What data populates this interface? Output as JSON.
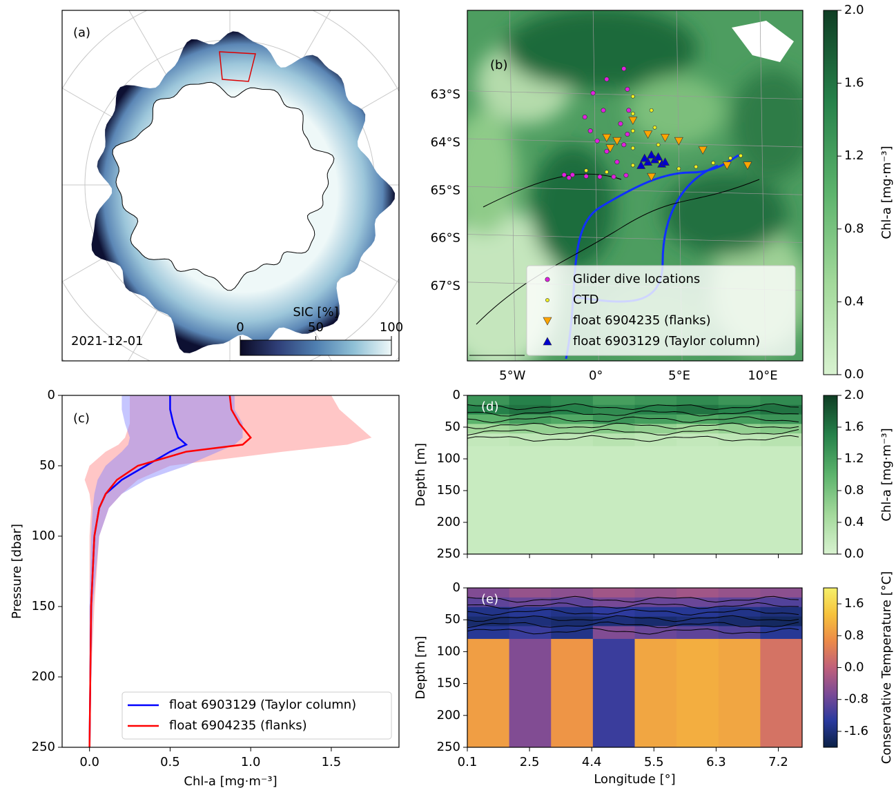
{
  "chart_data": [
    {
      "type": "map",
      "panel_label": "(a)",
      "annotation": "2021-12-01",
      "colorbar": {
        "label": "SIC [%]",
        "lim": [
          0,
          100
        ],
        "ticks": [
          0,
          50,
          100
        ],
        "colors": [
          "#0b0b25",
          "#2f3f78",
          "#4f7fb0",
          "#8fc0d6",
          "#eef8f8"
        ]
      }
    },
    {
      "type": "scatter",
      "panel_label": "(b)",
      "legend": "lower right",
      "xlim": [
        -7.7,
        12.4
      ],
      "ylim": [
        -68.56,
        -61.23
      ],
      "xticks": [
        {
          "value": -5,
          "label": "5°W"
        },
        {
          "value": 0,
          "label": "0°"
        },
        {
          "value": 5,
          "label": "5°E"
        },
        {
          "value": 10,
          "label": "10°E"
        }
      ],
      "yticks": [
        {
          "value": -63,
          "label": "63°S"
        },
        {
          "value": -64,
          "label": "64°S"
        },
        {
          "value": -65,
          "label": "65°S"
        },
        {
          "value": -66,
          "label": "66°S"
        },
        {
          "value": -67,
          "label": "67°S"
        }
      ],
      "series": [
        {
          "name": "Glider dive locations",
          "color": "#e020e0",
          "marker": "o",
          "x": [
            -0.66,
            -0.33,
            0.08,
            0.65,
            1.27,
            1.68,
            1.48,
            0.45,
            -0.17,
            0.65,
            1.68,
            1.89,
            1.97,
            1.89,
            1.81,
            1.07,
            0.24,
            -0.58,
            -1.4,
            -1.9,
            -1.61
          ],
          "values": [
            -63.46,
            -63.75,
            -63.96,
            -64.18,
            -64.4,
            -64.04,
            -63.6,
            -63.32,
            -62.96,
            -62.67,
            -62.45,
            -62.88,
            -63.32,
            -63.82,
            -64.68,
            -64.71,
            -64.71,
            -64.7,
            -64.67,
            -64.67,
            -64.73
          ]
        },
        {
          "name": "CTD",
          "color": "#f0f020",
          "marker": "o",
          "x": [
            2.22,
            2.22,
            2.22,
            2.22,
            2.22,
            3.33,
            3.53,
            3.74,
            3.86,
            4.97,
            6.0,
            7.03,
            8.06,
            8.68,
            0.65,
            -0.58
          ],
          "values": [
            -63.03,
            -63.39,
            -63.75,
            -64.11,
            -64.47,
            -63.32,
            -63.68,
            -64.04,
            -64.4,
            -64.54,
            -64.5,
            -64.42,
            -64.32,
            -64.27,
            -64.61,
            -64.58
          ]
        },
        {
          "name": "float 6904235 (flanks)",
          "color": "#ffa500",
          "marker": "v",
          "x": [
            2.22,
            0.65,
            0.86,
            1.27,
            3.12,
            4.15,
            4.97,
            6.41,
            7.86,
            9.09,
            3.33
          ],
          "values": [
            -63.53,
            -63.89,
            -64.11,
            -63.96,
            -63.82,
            -63.89,
            -63.96,
            -64.15,
            -64.47,
            -64.47,
            -64.71
          ]
        },
        {
          "name": "float 6903129 (Taylor column)",
          "color": "#0000cd",
          "marker": "^",
          "x": [
            2.71,
            3.12,
            3.53,
            3.95,
            2.92,
            3.33,
            3.74,
            4.15
          ],
          "values": [
            -64.47,
            -64.4,
            -64.35,
            -64.44,
            -64.32,
            -64.25,
            -64.29,
            -64.4
          ]
        }
      ],
      "colorbar": {
        "label": "Chl-a [mg·m⁻³]",
        "lim": [
          0,
          2
        ],
        "ticks": [
          {
            "value": 0,
            "label": "0.0"
          },
          0.4,
          0.8,
          1.2,
          1.6,
          {
            "value": 2,
            "label": "2.0"
          }
        ],
        "colors": [
          "#d8f2d0",
          "#a3d99b",
          "#5cb36c",
          "#26814a",
          "#0f3d24"
        ]
      }
    },
    {
      "type": "line",
      "panel_label": "(c)",
      "xlabel": "Chl-a [mg·m⁻³]",
      "ylabel": "Pressure [dbar]",
      "legend": "lower right",
      "xlim": [
        -0.17,
        1.92
      ],
      "ylim": [
        250,
        0
      ],
      "xticks": [
        {
          "value": 0,
          "label": "0.0"
        },
        0.5,
        {
          "value": 1,
          "label": "1.0"
        },
        1.5
      ],
      "yticks": [
        0,
        50,
        100,
        150,
        200,
        250
      ],
      "y": [
        0,
        10,
        20,
        30,
        35,
        40,
        50,
        60,
        70,
        80,
        100,
        150,
        200,
        250
      ],
      "series": [
        {
          "name": "float 6903129 (Taylor column)",
          "color": "#0000ff",
          "band_color": "#8080ff",
          "values": [
            0.5,
            0.5,
            0.52,
            0.55,
            0.6,
            0.5,
            0.35,
            0.2,
            0.1,
            0.06,
            0.03,
            0.01,
            0.005,
            0
          ],
          "lower": [
            0.2,
            0.2,
            0.22,
            0.25,
            0.24,
            0.2,
            0.1,
            0.05,
            0.03,
            0.02,
            0.01,
            0,
            0,
            0
          ],
          "upper": [
            0.9,
            0.9,
            0.95,
            0.95,
            0.9,
            0.8,
            0.6,
            0.35,
            0.2,
            0.12,
            0.06,
            0.02,
            0.01,
            0
          ]
        },
        {
          "name": "float 6904235 (flanks)",
          "color": "#ff0000",
          "band_color": "#ff8080",
          "values": [
            0.87,
            0.88,
            0.93,
            1.0,
            0.95,
            0.6,
            0.3,
            0.17,
            0.1,
            0.06,
            0.03,
            0.01,
            0.005,
            0
          ],
          "lower": [
            0.25,
            0.25,
            0.25,
            0.22,
            0.18,
            0.1,
            0,
            -0.03,
            0,
            0.01,
            0,
            0,
            0,
            0
          ],
          "upper": [
            1.5,
            1.55,
            1.65,
            1.75,
            1.6,
            1.2,
            0.5,
            0.3,
            0.2,
            0.12,
            0.06,
            0.03,
            0.01,
            0
          ]
        }
      ]
    },
    {
      "type": "heatmap",
      "panel_label": "(d)",
      "ylabel": "Depth [m]",
      "ylim": [
        250,
        0
      ],
      "yticks": [
        0,
        50,
        100,
        150,
        200,
        250
      ],
      "categories": [
        null,
        null,
        null,
        null,
        null,
        null
      ],
      "ybins": [
        0,
        15,
        30,
        45,
        60,
        80,
        250
      ],
      "values": [
        [
          1.3,
          1.5,
          1.4,
          1.2,
          1.3,
          1.4,
          1.3,
          1.4
        ],
        [
          1.5,
          1.6,
          1.5,
          1.4,
          1.5,
          1.6,
          1.5,
          1.6
        ],
        [
          1.0,
          1.2,
          1.1,
          1.3,
          1.2,
          1.1,
          1.2,
          1.3
        ],
        [
          0.5,
          0.6,
          0.6,
          0.7,
          0.6,
          0.5,
          0.6,
          0.7
        ],
        [
          0.2,
          0.25,
          0.25,
          0.3,
          0.25,
          0.2,
          0.25,
          0.3
        ],
        [
          0.15,
          0.15,
          0.15,
          0.15,
          0.15,
          0.15,
          0.15,
          0.15
        ]
      ],
      "colorbar": {
        "label": "Chl-a [mg·m⁻³]",
        "lim": [
          0,
          2
        ],
        "ticks": [
          {
            "value": 0,
            "label": "0.0"
          },
          0.4,
          0.8,
          1.2,
          1.6,
          {
            "value": 2,
            "label": "2.0"
          }
        ],
        "colors": [
          "#d8f2d0",
          "#a3d99b",
          "#5cb36c",
          "#26814a",
          "#0f3d24"
        ]
      }
    },
    {
      "type": "heatmap",
      "panel_label": "(e)",
      "ylabel": "Depth [m]",
      "xlabel": "Longitude [°]",
      "ylim": [
        250,
        0
      ],
      "yticks": [
        0,
        50,
        100,
        150,
        200,
        250
      ],
      "categories": [
        "0.1",
        "2.5",
        "4.4",
        "5.5",
        "6.3",
        "7.2"
      ],
      "ybins": [
        0,
        15,
        30,
        45,
        60,
        80,
        250
      ],
      "values": [
        [
          -0.6,
          -0.4,
          -0.5,
          -0.3,
          -0.4,
          -0.3,
          -0.4,
          -0.5
        ],
        [
          -0.9,
          -0.8,
          -0.9,
          -0.7,
          -0.8,
          -0.8,
          -0.9,
          -1.0
        ],
        [
          -1.5,
          -1.4,
          -1.5,
          -1.3,
          -1.4,
          -1.4,
          -1.5,
          -1.6
        ],
        [
          -1.7,
          -1.6,
          -1.7,
          -1.6,
          -1.7,
          -1.6,
          -1.7,
          -1.8
        ],
        [
          -1.4,
          -1.2,
          -1.5,
          -0.6,
          -0.8,
          -0.9,
          -1.0,
          -1.4
        ],
        [
          0.9,
          -0.6,
          0.8,
          -1.2,
          1.0,
          1.1,
          1.0,
          0.3
        ]
      ],
      "colorbar": {
        "label": "Conservative Temperature [°C]",
        "lim": [
          -2,
          2
        ],
        "ticks": [
          -1.6,
          -0.8,
          {
            "value": 0,
            "label": "0.0"
          },
          0.8,
          1.6
        ],
        "colors": [
          "#0b2145",
          "#2a3a9e",
          "#7a4a96",
          "#c0607a",
          "#ec8a48",
          "#f6c23c",
          "#f5f06a"
        ]
      }
    }
  ]
}
